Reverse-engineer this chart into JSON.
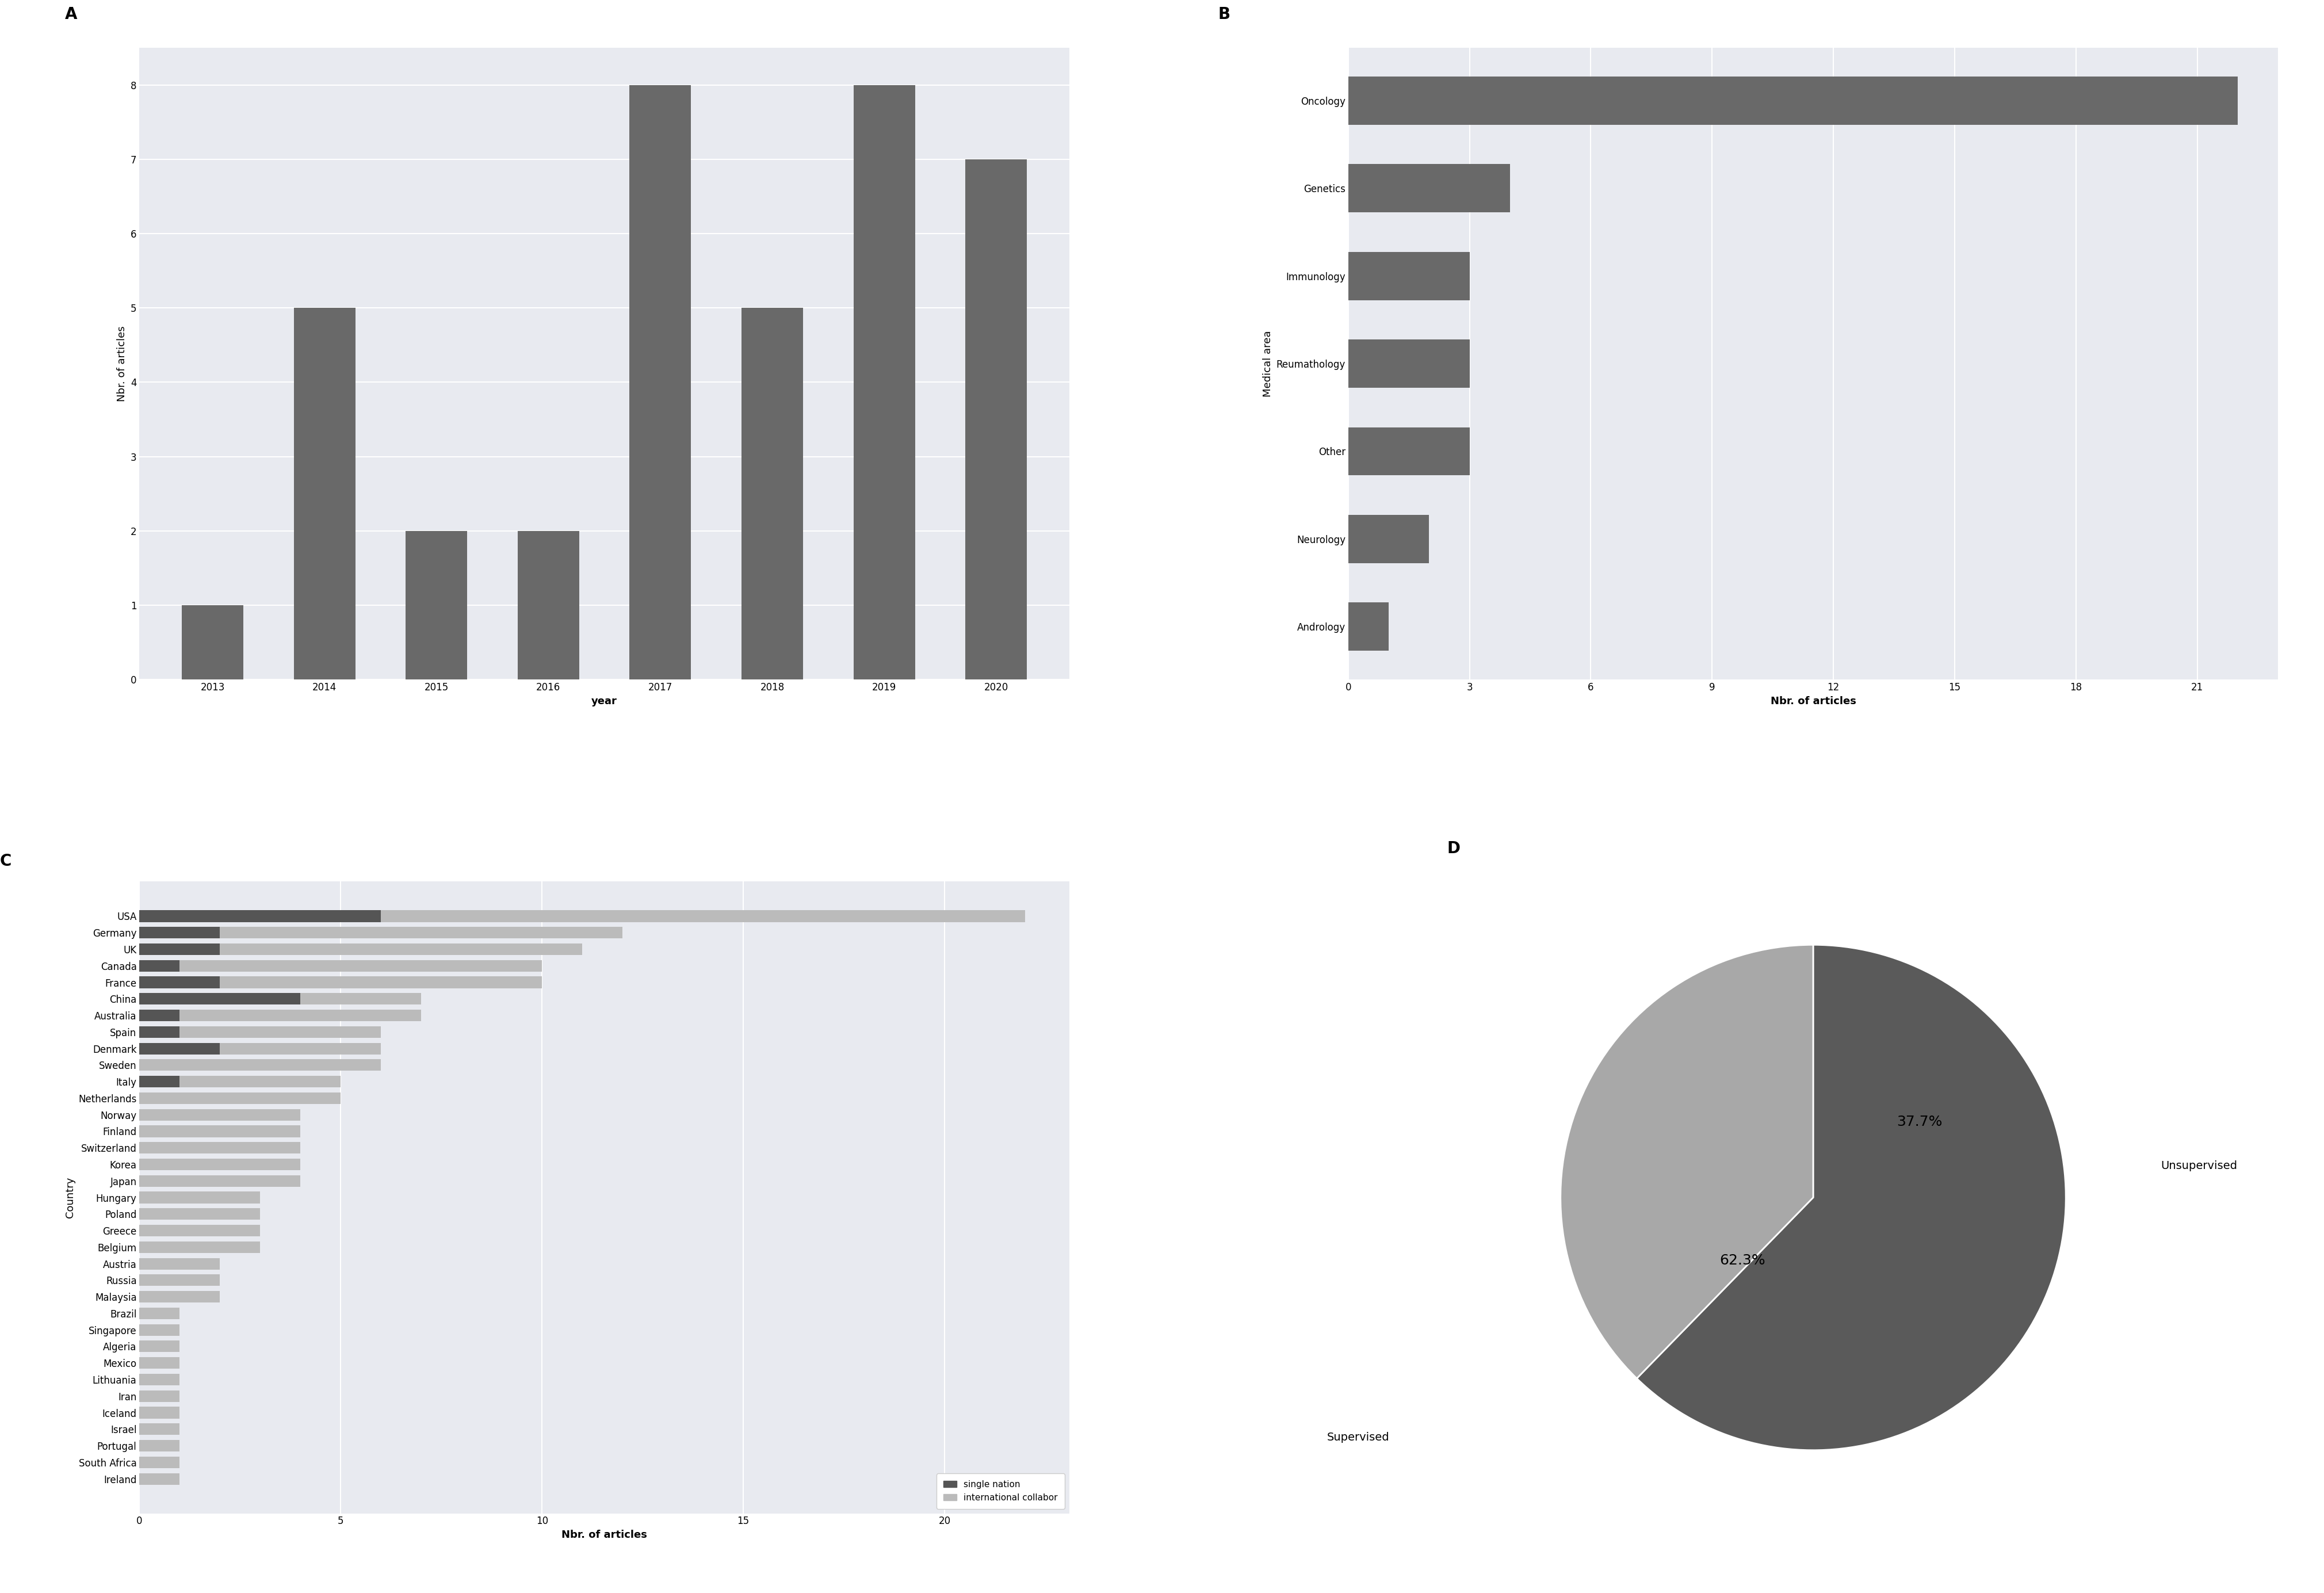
{
  "A": {
    "years": [
      "2013",
      "2014",
      "2015",
      "2016",
      "2017",
      "2018",
      "2019",
      "2020"
    ],
    "values": [
      1,
      5,
      2,
      2,
      8,
      5,
      8,
      7
    ],
    "bar_color": "#696969",
    "xlabel": "year",
    "ylabel": "Nbr. of articles",
    "ylim": [
      0,
      8.5
    ],
    "yticks": [
      0,
      1,
      2,
      3,
      4,
      5,
      6,
      7,
      8
    ],
    "bg_color": "#e8eaf0"
  },
  "B": {
    "categories": [
      "Oncology",
      "Genetics",
      "Immunology",
      "Reumathology",
      "Other",
      "Neurology",
      "Andrology"
    ],
    "values": [
      22,
      4,
      3,
      3,
      3,
      2,
      1
    ],
    "bar_color": "#696969",
    "xlabel": "Nbr. of articles",
    "ylabel": "Medical area",
    "xlim": [
      0,
      23
    ],
    "xticks": [
      0,
      3,
      6,
      9,
      12,
      15,
      18,
      21
    ],
    "bg_color": "#e8eaf0"
  },
  "C": {
    "countries": [
      "USA",
      "Germany",
      "UK",
      "Canada",
      "France",
      "China",
      "Australia",
      "Spain",
      "Denmark",
      "Sweden",
      "Italy",
      "Netherlands",
      "Norway",
      "Finland",
      "Switzerland",
      "Korea",
      "Japan",
      "Hungary",
      "Poland",
      "Greece",
      "Belgium",
      "Austria",
      "Russia",
      "Malaysia",
      "Brazil",
      "Singapore",
      "Algeria",
      "Mexico",
      "Lithuania",
      "Iran",
      "Iceland",
      "Israel",
      "Portugal",
      "South Africa",
      "Ireland"
    ],
    "single": [
      6,
      2,
      2,
      1,
      2,
      4,
      1,
      1,
      2,
      0,
      1,
      0,
      0,
      0,
      0,
      0,
      0,
      0,
      0,
      0,
      0,
      0,
      0,
      0,
      0,
      0,
      0,
      0,
      0,
      0,
      0,
      0,
      0,
      0,
      0
    ],
    "collab": [
      16,
      10,
      9,
      9,
      8,
      3,
      6,
      5,
      4,
      6,
      4,
      5,
      4,
      4,
      4,
      4,
      4,
      3,
      3,
      3,
      3,
      2,
      2,
      2,
      1,
      1,
      1,
      1,
      1,
      1,
      1,
      1,
      1,
      1,
      1
    ],
    "color_single": "#555555",
    "color_collab": "#bbbbbb",
    "xlabel": "Nbr. of articles",
    "ylabel": "Country",
    "xticks": [
      0,
      5,
      10,
      15,
      20
    ],
    "bg_color": "#e8eaf0"
  },
  "D": {
    "values": [
      62.3,
      37.7
    ],
    "colors": [
      "#5a5a5a",
      "#a8a8a8"
    ],
    "label_supervised": "Supervised",
    "label_unsupervised": "Unsupervised",
    "pct_supervised": "62.3%",
    "pct_unsupervised": "37.7%"
  },
  "panel_label_fontsize": 20,
  "tick_fontsize": 12,
  "axis_label_fontsize": 13
}
